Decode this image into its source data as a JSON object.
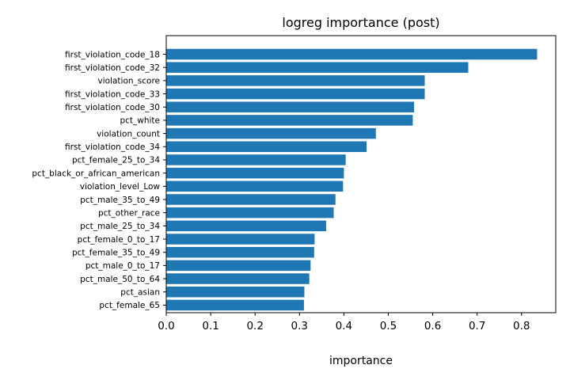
{
  "chart_data": {
    "type": "bar",
    "orientation": "horizontal",
    "title": "logreg importance (post)",
    "xlabel": "importance",
    "ylabel": "",
    "xlim": [
      0.0,
      0.877
    ],
    "xticks": [
      "0.0",
      "0.1",
      "0.2",
      "0.3",
      "0.4",
      "0.5",
      "0.6",
      "0.7",
      "0.8"
    ],
    "grid": false,
    "bar_color": "#1f77b4",
    "categories": [
      "first_violation_code_18",
      "first_violation_code_32",
      "violation_score",
      "first_violation_code_33",
      "first_violation_code_30",
      "pct_white",
      "violation_count",
      "first_violation_code_34",
      "pct_female_25_to_34",
      "pct_black_or_african_american",
      "violation_level_Low",
      "pct_male_35_to_49",
      "pct_other_race",
      "pct_male_25_to_34",
      "pct_female_0_to_17",
      "pct_female_35_to_49",
      "pct_male_0_to_17",
      "pct_male_50_to_64",
      "pct_asian",
      "pct_female_65"
    ],
    "values": [
      0.835,
      0.68,
      0.582,
      0.582,
      0.558,
      0.555,
      0.472,
      0.451,
      0.404,
      0.4,
      0.398,
      0.381,
      0.377,
      0.36,
      0.334,
      0.333,
      0.325,
      0.322,
      0.311,
      0.31
    ]
  }
}
